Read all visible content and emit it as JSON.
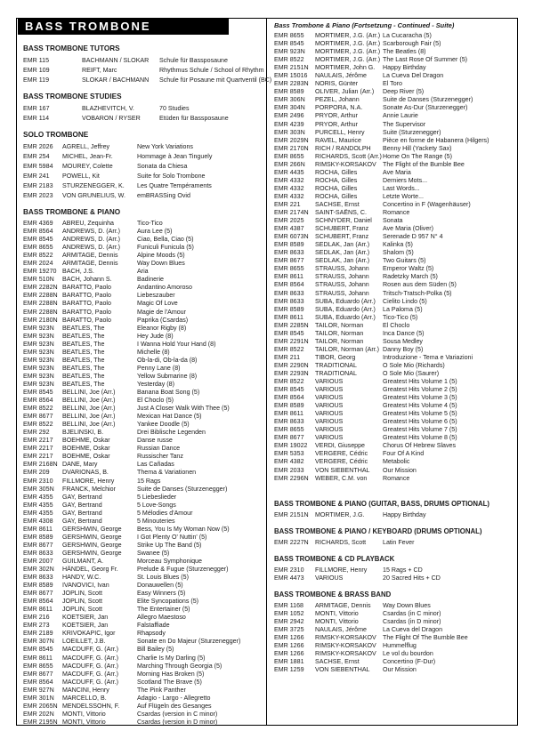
{
  "page_title": "BASS TROMBONE",
  "left_sections": [
    {
      "heading": "BASS TROMBONE TUTORS",
      "entries": [
        {
          "ref": "EMR 115",
          "composer": "BACHMANN / SLOKAR",
          "title": "Schule für Bassposaune"
        },
        {
          "ref": "EMR 109",
          "composer": "REIFT, Marc",
          "title": "Rhythmus Schule / School of Rhythm"
        },
        {
          "ref": "EMR 119",
          "composer": "SLOKAR / BACHMANN",
          "title": "Schule für Posaune mit Quartventil (BC)"
        }
      ]
    },
    {
      "heading": "BASS TROMBONE STUDIES",
      "entries": [
        {
          "ref": "EMR 167",
          "composer": "BLAZHEVITCH, V.",
          "title": "70 Studies"
        },
        {
          "ref": "EMR 114",
          "composer": "VOBARON / RYSER",
          "title": "Etüden für Bassposaune"
        }
      ]
    },
    {
      "heading": "SOLO TROMBONE",
      "entries": [
        {
          "ref": "EMR 2026",
          "composer": "AGRELL, Jeffrey",
          "title": "New York Variations"
        },
        {
          "ref": "EMR 254",
          "composer": "MICHEL, Jean-Fr.",
          "title": "Hommage à Jean Tinguely"
        },
        {
          "ref": "EMR 5984",
          "composer": "MOUREY, Colette",
          "title": "Sonata da Chiesa"
        },
        {
          "ref": "EMR 241",
          "composer": "POWELL, Kit",
          "title": "Suite for Solo Trombone"
        },
        {
          "ref": "EMR 2183",
          "composer": "STURZENEGGER, K.",
          "title": "Les Quatre Tempéraments"
        },
        {
          "ref": "EMR 2023",
          "composer": "VON GRUNELIUS, W.",
          "title": "emBRASSing Ovid"
        }
      ]
    },
    {
      "heading": "BASS TROMBONE & PIANO",
      "entries": [
        {
          "ref": "EMR 4369",
          "composer": "ABREU, Zequinha",
          "title": "Tico-Tico"
        },
        {
          "ref": "EMR 8564",
          "composer": "ANDREWS, D. (Arr.)",
          "title": "Aura Lee (5)"
        },
        {
          "ref": "EMR 8545",
          "composer": "ANDREWS, D. (Arr.)",
          "title": "Ciao, Bella, Ciao (5)"
        },
        {
          "ref": "EMR 8655",
          "composer": "ANDREWS, D. (Arr.)",
          "title": "Funiculi Funicula (5)"
        },
        {
          "ref": "EMR 8522",
          "composer": "ARMITAGE, Dennis",
          "title": "Alpine Moods (5)"
        },
        {
          "ref": "EMR 2024",
          "composer": "ARMITAGE, Dennis",
          "title": "Way Down Blues"
        },
        {
          "ref": "EMR 19270",
          "composer": "BACH, J.S.",
          "title": "Aria"
        },
        {
          "ref": "EMR 510N",
          "composer": "BACH, Johann S.",
          "title": "Badinerie"
        },
        {
          "ref": "EMR 2282N",
          "composer": "BARATTO, Paolo",
          "title": "Andantino Amoroso"
        },
        {
          "ref": "EMR 2288N",
          "composer": "BARATTO, Paolo",
          "title": "Liebeszauber"
        },
        {
          "ref": "EMR 2288N",
          "composer": "BARATTO, Paolo",
          "title": "Magic Of Love"
        },
        {
          "ref": "EMR 2288N",
          "composer": "BARATTO, Paolo",
          "title": "Magie de l'Amour"
        },
        {
          "ref": "EMR 2180N",
          "composer": "BARATTO, Paolo",
          "title": "Paprika (Csardas)"
        },
        {
          "ref": "EMR 923N",
          "composer": "BEATLES, The",
          "title": "Eleanor Rigby (8)"
        },
        {
          "ref": "EMR 923N",
          "composer": "BEATLES, The",
          "title": "Hey Jude (8)"
        },
        {
          "ref": "EMR 923N",
          "composer": "BEATLES, The",
          "title": "I Wanna Hold Your Hand (8)"
        },
        {
          "ref": "EMR 923N",
          "composer": "BEATLES, The",
          "title": "Michelle (8)"
        },
        {
          "ref": "EMR 923N",
          "composer": "BEATLES, The",
          "title": "Ob-la-di, Ob-la-da (8)"
        },
        {
          "ref": "EMR 923N",
          "composer": "BEATLES, The",
          "title": "Penny Lane (8)"
        },
        {
          "ref": "EMR 923N",
          "composer": "BEATLES, The",
          "title": "Yellow Submarine (8)"
        },
        {
          "ref": "EMR 923N",
          "composer": "BEATLES, The",
          "title": "Yesterday (8)"
        },
        {
          "ref": "EMR 8545",
          "composer": "BELLINI, Joe (Arr.)",
          "title": "Banana Boat Song (5)"
        },
        {
          "ref": "EMR 8564",
          "composer": "BELLINI, Joe (Arr.)",
          "title": "El Choclo (5)"
        },
        {
          "ref": "EMR 8522",
          "composer": "BELLINI, Joe (Arr.)",
          "title": "Just A Closer Walk With Thee (5)"
        },
        {
          "ref": "EMR 8677",
          "composer": "BELLINI, Joe (Arr.)",
          "title": "Mexican Hat Dance (5)"
        },
        {
          "ref": "EMR 8522",
          "composer": "BELLINI, Joe (Arr.)",
          "title": "Yankee Doodle (5)"
        },
        {
          "ref": "EMR 292",
          "composer": "BJELINSKI, B.",
          "title": "Drei Biblische Legenden"
        },
        {
          "ref": "EMR 2217",
          "composer": "BOEHME, Oskar",
          "title": "Danse russe"
        },
        {
          "ref": "EMR 2217",
          "composer": "BOEHME, Oskar",
          "title": "Russian Dance"
        },
        {
          "ref": "EMR 2217",
          "composer": "BOEHME, Oskar",
          "title": "Russischer Tanz"
        },
        {
          "ref": "EMR 2168N",
          "composer": "DANE, Mary",
          "title": "Las Cañadas"
        },
        {
          "ref": "EMR 209",
          "composer": "DVARIONAS, B.",
          "title": "Thema & Variationen"
        },
        {
          "ref": "EMR 2310",
          "composer": "FILLMORE, Henry",
          "title": "15 Rags"
        },
        {
          "ref": "EMR 305N",
          "composer": "FRANCK, Melchior",
          "title": "Suite de Danses (Sturzenegger)"
        },
        {
          "ref": "EMR 4355",
          "composer": "GAY, Bertrand",
          "title": "5 Liebeslieder"
        },
        {
          "ref": "EMR 4355",
          "composer": "GAY, Bertrand",
          "title": "5 Love-Songs"
        },
        {
          "ref": "EMR 4355",
          "composer": "GAY, Bertrand",
          "title": "5 Mélodies d'Amour"
        },
        {
          "ref": "EMR 4308",
          "composer": "GAY, Bertrand",
          "title": "5 Minouteries"
        },
        {
          "ref": "EMR 8611",
          "composer": "GERSHWIN, George",
          "title": "Bess, You Is My Woman Now (5)"
        },
        {
          "ref": "EMR 8589",
          "composer": "GERSHWIN, George",
          "title": "I Got Plenty O' Nuttin' (5)"
        },
        {
          "ref": "EMR 8677",
          "composer": "GERSHWIN, George",
          "title": "Strike Up The Band (5)"
        },
        {
          "ref": "EMR 8633",
          "composer": "GERSHWIN, George",
          "title": "Swanee (5)"
        },
        {
          "ref": "EMR 2007",
          "composer": "GUILMANT, A.",
          "title": "Morceau Symphonique"
        },
        {
          "ref": "EMR 302N",
          "composer": "HÄNDEL, Georg Fr.",
          "title": "Prelude & Fugue (Sturzenegger)"
        },
        {
          "ref": "EMR 8633",
          "composer": "HANDY, W.C.",
          "title": "St. Louis Blues (5)"
        },
        {
          "ref": "EMR 8589",
          "composer": "IVANOVICI, Ivan",
          "title": "Donauwellen (5)"
        },
        {
          "ref": "EMR 8677",
          "composer": "JOPLIN, Scott",
          "title": "Easy Winners (5)"
        },
        {
          "ref": "EMR 8564",
          "composer": "JOPLIN, Scott",
          "title": "Elite Syncopations (5)"
        },
        {
          "ref": "EMR 8611",
          "composer": "JOPLIN, Scott",
          "title": "The Entertainer (5)"
        },
        {
          "ref": "EMR 216",
          "composer": "KOETSIER, Jan",
          "title": "Allegro Maestoso"
        },
        {
          "ref": "EMR 273",
          "composer": "KOETSIER, Jan",
          "title": "Falstaffiade"
        },
        {
          "ref": "EMR 2189",
          "composer": "KRIVOKAPIC, Igor",
          "title": "Rhapsody"
        },
        {
          "ref": "EMR 307N",
          "composer": "LOEILLET, J.B.",
          "title": "Sonate en Do Majeur (Sturzenegger)"
        },
        {
          "ref": "EMR 8545",
          "composer": "MACDUFF, G. (Arr.)",
          "title": "Bill Bailey (5)"
        },
        {
          "ref": "EMR 8611",
          "composer": "MACDUFF, G. (Arr.)",
          "title": "Charlie Is My Darling (5)"
        },
        {
          "ref": "EMR 8655",
          "composer": "MACDUFF, G. (Arr.)",
          "title": "Marching Through Georgia (5)"
        },
        {
          "ref": "EMR 8677",
          "composer": "MACDUFF, G. (Arr.)",
          "title": "Morning Has Broken (5)"
        },
        {
          "ref": "EMR 8564",
          "composer": "MACDUFF, G. (Arr.)",
          "title": "Scotland The Brave (5)"
        },
        {
          "ref": "EMR 927N",
          "composer": "MANCINI, Henry",
          "title": "The Pink Panther"
        },
        {
          "ref": "EMR 301N",
          "composer": "MARCELLO, B.",
          "title": "Adagio - Largo - Allegretto"
        },
        {
          "ref": "EMR 2065N",
          "composer": "MENDELSSOHN, F.",
          "title": "Auf Flügeln des Gesanges"
        },
        {
          "ref": "EMR 202N",
          "composer": "MONTI, Vittorio",
          "title": "Csardas (version in C minor)"
        },
        {
          "ref": "EMR 2195N",
          "composer": "MONTI, Vittorio",
          "title": "Csardas (version in D minor)"
        }
      ]
    }
  ],
  "right_sections": [
    {
      "heading": "Bass Trombone & Piano (Fortsetzung - Continued - Suite)",
      "entries": [
        {
          "ref": "EMR 8655",
          "composer": "MORTIMER, J.G. (Arr.)",
          "title": "La Cucaracha (5)"
        },
        {
          "ref": "EMR 8545",
          "composer": "MORTIMER, J.G. (Arr.)",
          "title": "Scarborough Fair (5)"
        },
        {
          "ref": "EMR 923N",
          "composer": "MORTIMER, J.G. (Arr.)",
          "title": "The Beatles (8)"
        },
        {
          "ref": "EMR 8522",
          "composer": "MORTIMER, J.G. (Arr.)",
          "title": "The Last Rose Of Summer (5)"
        },
        {
          "ref": "EMR 2151N",
          "composer": "MORTIMER, John G.",
          "title": "Happy Birthday"
        },
        {
          "ref": "EMR 15016",
          "composer": "NAULAIS, Jérôme",
          "title": "La Cueva Del Dragon"
        },
        {
          "ref": "EMR 2283N",
          "composer": "NORIS, Günter",
          "title": "El Toro"
        },
        {
          "ref": "EMR 8589",
          "composer": "OLIVER, Julian (Arr.)",
          "title": "Deep River (5)"
        },
        {
          "ref": "EMR 306N",
          "composer": "PEZEL, Johann",
          "title": "Suite de Danses (Sturzenegger)"
        },
        {
          "ref": "EMR 304N",
          "composer": "PORPORA, N.A.",
          "title": "Sonate As-Dur (Sturzenegger)"
        },
        {
          "ref": "EMR 2496",
          "composer": "PRYOR, Arthur",
          "title": "Annie Laurie"
        },
        {
          "ref": "EMR 4239",
          "composer": "PRYOR, Arthur",
          "title": "The Supervisor"
        },
        {
          "ref": "EMR 303N",
          "composer": "PURCELL, Henry",
          "title": "Suite (Sturzenegger)"
        },
        {
          "ref": "EMR 2029N",
          "composer": "RAVEL, Maurice",
          "title": "Pièce en forme de Habanera (Hilgers)"
        },
        {
          "ref": "EMR 2170N",
          "composer": "RICH / RANDOLPH",
          "title": "Benny Hill (Yackety Sax)"
        },
        {
          "ref": "EMR 8655",
          "composer": "RICHARDS, Scott (Arr.)",
          "title": "Home On The Range (5)"
        },
        {
          "ref": "EMR 266N",
          "composer": "RIMSKY-KORSAKOV",
          "title": "The Flight of the Bumble Bee"
        },
        {
          "ref": "EMR 4435",
          "composer": "ROCHA, Gilles",
          "title": "Ave Maria"
        },
        {
          "ref": "EMR 4332",
          "composer": "ROCHA, Gilles",
          "title": "Derniers Mots..."
        },
        {
          "ref": "EMR 4332",
          "composer": "ROCHA, Gilles",
          "title": "Last Words..."
        },
        {
          "ref": "EMR 4332",
          "composer": "ROCHA, Gilles",
          "title": "Letzte Worte..."
        },
        {
          "ref": "EMR 221",
          "composer": "SACHSE, Ernst",
          "title": "Concertino in F (Wagenhäuser)"
        },
        {
          "ref": "EMR 2174N",
          "composer": "SAINT-SAËNS, C.",
          "title": "Romance"
        },
        {
          "ref": "EMR 2025",
          "composer": "SCHNYDER, Daniel",
          "title": "Sonata"
        },
        {
          "ref": "EMR 4387",
          "composer": "SCHUBERT, Franz",
          "title": "Ave Maria (Oliver)"
        },
        {
          "ref": "EMR 6073N",
          "composer": "SCHUBERT, Franz",
          "title": "Serenade D 957 N° 4"
        },
        {
          "ref": "EMR 8589",
          "composer": "SEDLAK, Jan (Arr.)",
          "title": "Kalinka (5)"
        },
        {
          "ref": "EMR 8633",
          "composer": "SEDLAK, Jan (Arr.)",
          "title": "Shalom (5)"
        },
        {
          "ref": "EMR 8677",
          "composer": "SEDLAK, Jan (Arr.)",
          "title": "Two Guitars (5)"
        },
        {
          "ref": "EMR 8655",
          "composer": "STRAUSS, Johann",
          "title": "Emperor Waltz (5)"
        },
        {
          "ref": "EMR 8611",
          "composer": "STRAUSS, Johann",
          "title": "Radetzky March (5)"
        },
        {
          "ref": "EMR 8564",
          "composer": "STRAUSS, Johann",
          "title": "Rosen aus dem Süden (5)"
        },
        {
          "ref": "EMR 8633",
          "composer": "STRAUSS, Johann",
          "title": "Tritsch-Tratsch-Polka (5)"
        },
        {
          "ref": "EMR 8633",
          "composer": "SUBA, Eduardo (Arr.)",
          "title": "Cielito Lindo (5)"
        },
        {
          "ref": "EMR 8589",
          "composer": "SUBA, Eduardo (Arr.)",
          "title": "La Paloma (5)"
        },
        {
          "ref": "EMR 8611",
          "composer": "SUBA, Eduardo (Arr.)",
          "title": "Tico-Tico (5)"
        },
        {
          "ref": "EMR 2285N",
          "composer": "TAILOR, Norman",
          "title": "El Choclo"
        },
        {
          "ref": "EMR 8545",
          "composer": "TAILOR, Norman",
          "title": "Inca Dance (5)"
        },
        {
          "ref": "EMR 2291N",
          "composer": "TAILOR, Norman",
          "title": "Sousa Medley"
        },
        {
          "ref": "EMR 8522",
          "composer": "TAILOR, Norman (Arr.)",
          "title": "Danny Boy (5)"
        },
        {
          "ref": "EMR 211",
          "composer": "TIBOR, Georg",
          "title": "Introduzione - Tema e Variazioni"
        },
        {
          "ref": "EMR 2290N",
          "composer": "TRADITIONAL",
          "title": "O Sole Mio (Richards)"
        },
        {
          "ref": "EMR 2293N",
          "composer": "TRADITIONAL",
          "title": "O Sole Mio (Saurer)"
        },
        {
          "ref": "EMR 8522",
          "composer": "VARIOUS",
          "title": "Greatest Hits Volume 1 (5)"
        },
        {
          "ref": "EMR 8545",
          "composer": "VARIOUS",
          "title": "Greatest Hits Volume 2 (5)"
        },
        {
          "ref": "EMR 8564",
          "composer": "VARIOUS",
          "title": "Greatest Hits Volume 3 (5)"
        },
        {
          "ref": "EMR 8589",
          "composer": "VARIOUS",
          "title": "Greatest Hits Volume 4 (5)"
        },
        {
          "ref": "EMR 8611",
          "composer": "VARIOUS",
          "title": "Greatest Hits Volume 5 (5)"
        },
        {
          "ref": "EMR 8633",
          "composer": "VARIOUS",
          "title": "Greatest Hits Volume 6 (5)"
        },
        {
          "ref": "EMR 8655",
          "composer": "VARIOUS",
          "title": "Greatest Hits Volume 7 (5)"
        },
        {
          "ref": "EMR 8677",
          "composer": "VARIOUS",
          "title": "Greatest Hits Volume 8 (5)"
        },
        {
          "ref": "EMR 19022",
          "composer": "VERDI, Giuseppe",
          "title": "Chorus Of Hebrew Slaves"
        },
        {
          "ref": "EMR 5353",
          "composer": "VERGERE, Cédric",
          "title": "Four Of A Kind"
        },
        {
          "ref": "EMR 4382",
          "composer": "VERGERE, Cédric",
          "title": "Metabolic"
        },
        {
          "ref": "EMR 2033",
          "composer": "VON SIEBENTHAL",
          "title": "Our Mission"
        },
        {
          "ref": "EMR 2296N",
          "composer": "WEBER, C.M. von",
          "title": "Romance"
        }
      ]
    },
    {
      "heading": "BASS TROMBONE & PIANO (GUITAR, BASS, DRUMS OPTIONAL)",
      "entries": [
        {
          "ref": "EMR 2151N",
          "composer": "MORTIMER, J.G.",
          "title": "Happy Birthday"
        }
      ]
    },
    {
      "heading": "BASS TROMBONE & PIANO / KEYBOARD (DRUMS OPTIONAL)",
      "entries": [
        {
          "ref": "EMR 2227N",
          "composer": "RICHARDS, Scott",
          "title": "Latin Fever"
        }
      ]
    },
    {
      "heading": "BASS TROMBONE & CD PLAYBACK",
      "entries": [
        {
          "ref": "EMR 2310",
          "composer": "FILLMORE, Henry",
          "title": "15 Rags + CD"
        },
        {
          "ref": "EMR 4473",
          "composer": "VARIOUS",
          "title": "20 Sacred Hits + CD"
        }
      ]
    },
    {
      "heading": "BASS TROMBONE & BRASS BAND",
      "entries": [
        {
          "ref": "EMR 1168",
          "composer": "ARMITAGE, Dennis",
          "title": "Way Down Blues"
        },
        {
          "ref": "EMR 1052",
          "composer": "MONTI, Vittorio",
          "title": "Csardas (in C minor)"
        },
        {
          "ref": "EMR 2942",
          "composer": "MONTI, Vittorio",
          "title": "Csardas (in D minor)"
        },
        {
          "ref": "EMR 3725",
          "composer": "NAULAIS, Jérôme",
          "title": "La Cueva del Dragon"
        },
        {
          "ref": "EMR 1266",
          "composer": "RIMSKY-KORSAKOV",
          "title": "The Flight Of The Bumble Bee"
        },
        {
          "ref": "EMR 1266",
          "composer": "RIMSKY-KORSAKOV",
          "title": "Hummelflug"
        },
        {
          "ref": "EMR 1266",
          "composer": "RIMSKY-KORSAKOV",
          "title": "Le vol du bourdon"
        },
        {
          "ref": "EMR 1881",
          "composer": "SACHSE, Ernst",
          "title": "Concertino (F-Dur)"
        },
        {
          "ref": "EMR 1259",
          "composer": "VON SIEBENTHAL",
          "title": "Our Mission"
        }
      ]
    }
  ]
}
